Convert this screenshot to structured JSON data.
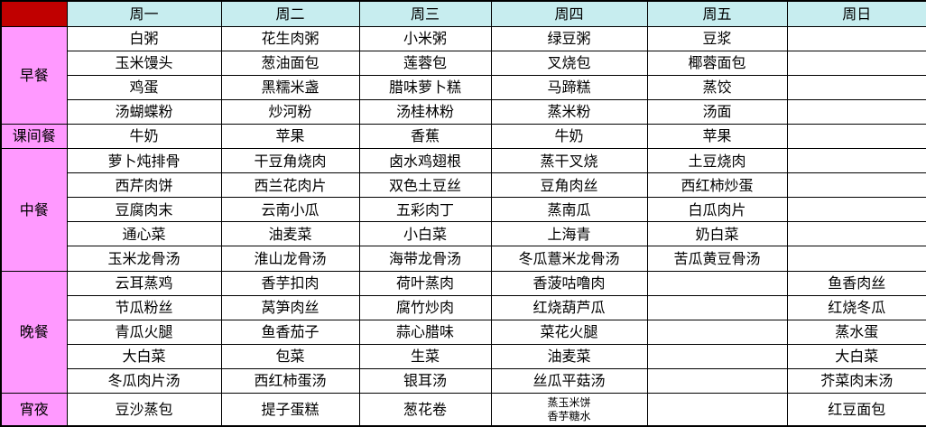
{
  "colors": {
    "corner_bg": "#C00000",
    "day_header_bg": "#C7EDEF",
    "section_label_bg": "#FF99FF",
    "border": "#000000",
    "cell_bg": "#FFFFFF",
    "text": "#000000"
  },
  "table": {
    "corner_label": "",
    "days": [
      "周一",
      "周二",
      "周三",
      "周四",
      "周五",
      "周日"
    ],
    "sections": [
      {
        "label": "早餐",
        "rows": [
          [
            "白粥",
            "花生肉粥",
            "小米粥",
            "绿豆粥",
            "豆浆",
            ""
          ],
          [
            "玉米馒头",
            "葱油面包",
            "莲蓉包",
            "叉烧包",
            "椰蓉面包",
            ""
          ],
          [
            "鸡蛋",
            "黑糯米盏",
            "腊味萝卜糕",
            "马蹄糕",
            "蒸饺",
            ""
          ],
          [
            "汤蝴蝶粉",
            "炒河粉",
            "汤桂林粉",
            "蒸米粉",
            "汤面",
            ""
          ]
        ]
      },
      {
        "label": "课间餐",
        "rows": [
          [
            "牛奶",
            "苹果",
            "香蕉",
            "牛奶",
            "苹果",
            ""
          ]
        ]
      },
      {
        "label": "中餐",
        "rows": [
          [
            "萝卜炖排骨",
            "干豆角烧肉",
            "卤水鸡翅根",
            "蒸干叉烧",
            "土豆烧肉",
            ""
          ],
          [
            "西芹肉饼",
            "西兰花肉片",
            "双色土豆丝",
            "豆角肉丝",
            "西红柿炒蛋",
            ""
          ],
          [
            "豆腐肉末",
            "云南小瓜",
            "五彩肉丁",
            "蒸南瓜",
            "白瓜肉片",
            ""
          ],
          [
            "通心菜",
            "油麦菜",
            "小白菜",
            "上海青",
            "奶白菜",
            ""
          ],
          [
            "玉米龙骨汤",
            "淮山龙骨汤",
            "海带龙骨汤",
            "冬瓜薏米龙骨汤",
            "苦瓜黄豆骨汤",
            ""
          ]
        ]
      },
      {
        "label": "晚餐",
        "rows": [
          [
            "云耳蒸鸡",
            "香芋扣肉",
            "荷叶蒸肉",
            "香菠咕噜肉",
            "",
            "鱼香肉丝"
          ],
          [
            "节瓜粉丝",
            "莴笋肉丝",
            "腐竹炒肉",
            "红烧葫芦瓜",
            "",
            "红烧冬瓜"
          ],
          [
            "青瓜火腿",
            "鱼香茄子",
            "蒜心腊味",
            "菜花火腿",
            "",
            "蒸水蛋"
          ],
          [
            "大白菜",
            "包菜",
            "生菜",
            "油麦菜",
            "",
            "大白菜"
          ],
          [
            "冬瓜肉片汤",
            "西红柿蛋汤",
            "银耳汤",
            "丝瓜平菇汤",
            "",
            "芥菜肉末汤"
          ]
        ]
      },
      {
        "label": "宵夜",
        "rows": [
          [
            "豆沙蒸包",
            "提子蛋糕",
            "葱花卷",
            "蒸玉米饼\n香芋糖水",
            "",
            "红豆面包"
          ]
        ]
      }
    ]
  }
}
